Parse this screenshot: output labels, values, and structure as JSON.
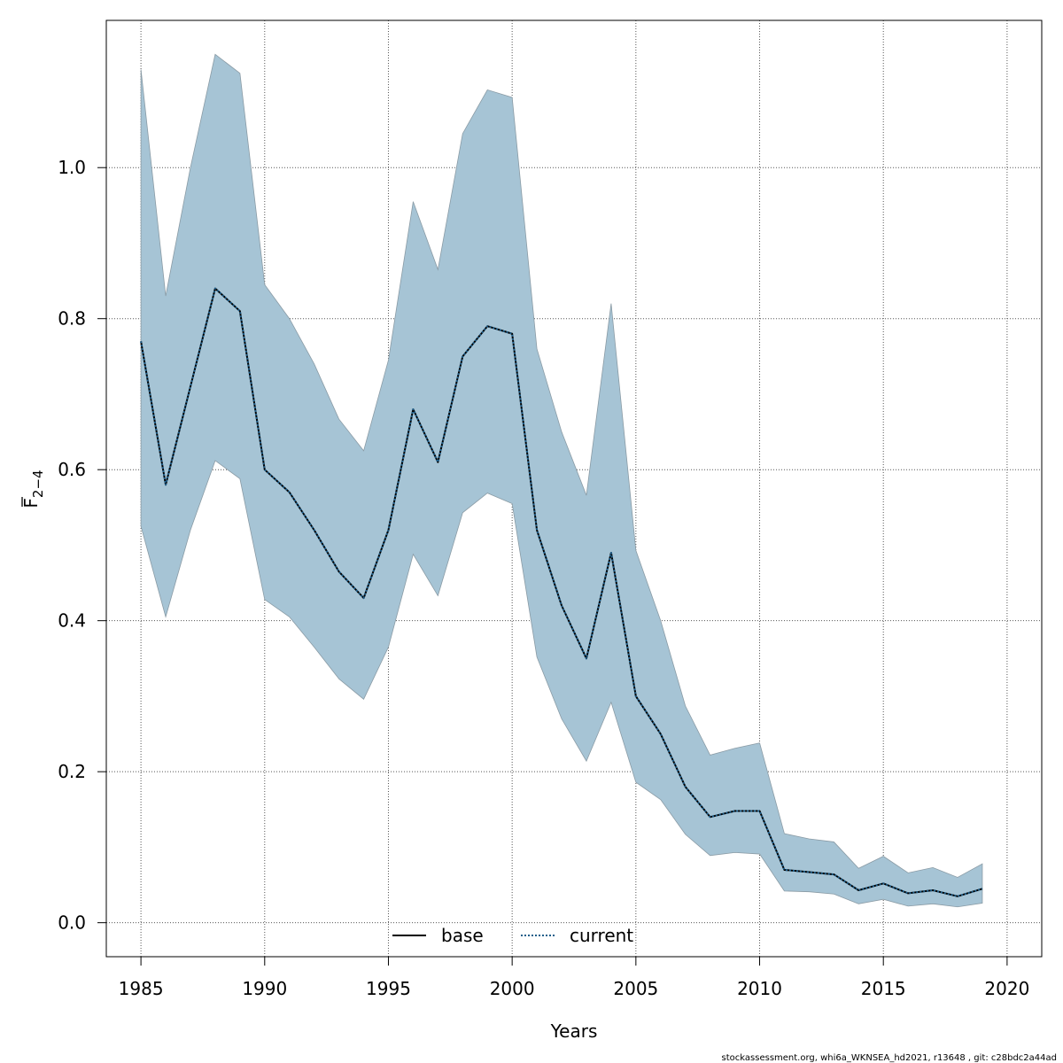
{
  "chart_data": {
    "type": "line",
    "xlabel": "Years",
    "ylabel": {
      "base": "F",
      "subscript": "2−4"
    },
    "xlim": [
      1983.6,
      2021.4
    ],
    "ylim": [
      -0.045,
      1.195
    ],
    "x_ticks": [
      1985,
      1990,
      1995,
      2000,
      2005,
      2010,
      2015,
      2020
    ],
    "y_ticks": [
      0.0,
      0.2,
      0.4,
      0.6,
      0.8,
      1.0
    ],
    "x_tick_labels": [
      "1985",
      "1990",
      "1995",
      "2000",
      "2005",
      "2010",
      "2015",
      "2020"
    ],
    "y_tick_labels": [
      "0.0",
      "0.2",
      "0.4",
      "0.6",
      "0.8",
      "1.0"
    ],
    "grid": true,
    "legend_position": "bottom-center",
    "years": [
      1985,
      1986,
      1987,
      1988,
      1989,
      1990,
      1991,
      1992,
      1993,
      1994,
      1995,
      1996,
      1997,
      1998,
      1999,
      2000,
      2001,
      2002,
      2003,
      2004,
      2005,
      2006,
      2007,
      2008,
      2009,
      2010,
      2011,
      2012,
      2013,
      2014,
      2015,
      2016,
      2017,
      2018,
      2019
    ],
    "series": [
      {
        "name": "base",
        "style": "solid",
        "color": "#000000",
        "values": [
          0.77,
          0.58,
          0.71,
          0.84,
          0.81,
          0.6,
          0.57,
          0.52,
          0.465,
          0.43,
          0.52,
          0.68,
          0.61,
          0.75,
          0.79,
          0.78,
          0.52,
          0.42,
          0.35,
          0.49,
          0.3,
          0.25,
          0.18,
          0.14,
          0.148,
          0.148,
          0.07,
          0.067,
          0.064,
          0.043,
          0.052,
          0.039,
          0.043,
          0.035,
          0.045
        ]
      },
      {
        "name": "current",
        "style": "dotted",
        "color": "#1f5f8b",
        "values": [
          0.77,
          0.58,
          0.71,
          0.84,
          0.81,
          0.6,
          0.57,
          0.52,
          0.465,
          0.43,
          0.52,
          0.68,
          0.61,
          0.75,
          0.79,
          0.78,
          0.52,
          0.42,
          0.35,
          0.49,
          0.3,
          0.25,
          0.18,
          0.14,
          0.148,
          0.148,
          0.07,
          0.067,
          0.064,
          0.043,
          0.052,
          0.039,
          0.043,
          0.035,
          0.045
        ]
      }
    ],
    "ci_band": {
      "color": "#a6c4d5",
      "lower": [
        0.525,
        0.405,
        0.52,
        0.612,
        0.588,
        0.428,
        0.405,
        0.365,
        0.323,
        0.296,
        0.365,
        0.488,
        0.433,
        0.543,
        0.569,
        0.555,
        0.352,
        0.27,
        0.214,
        0.292,
        0.186,
        0.163,
        0.117,
        0.089,
        0.093,
        0.091,
        0.042,
        0.041,
        0.038,
        0.025,
        0.031,
        0.022,
        0.025,
        0.021,
        0.026
      ],
      "upper": [
        1.13,
        0.83,
        1.0,
        1.15,
        1.125,
        0.845,
        0.8,
        0.74,
        0.667,
        0.625,
        0.745,
        0.955,
        0.865,
        1.045,
        1.103,
        1.093,
        0.76,
        0.65,
        0.566,
        0.82,
        0.493,
        0.4,
        0.287,
        0.222,
        0.231,
        0.238,
        0.118,
        0.111,
        0.107,
        0.072,
        0.088,
        0.066,
        0.073,
        0.06,
        0.078
      ]
    }
  },
  "footer_text": "stockassessment.org, whi6a_WKNSEA_hd2021, r13648 , git: c28bdc2a44ad"
}
